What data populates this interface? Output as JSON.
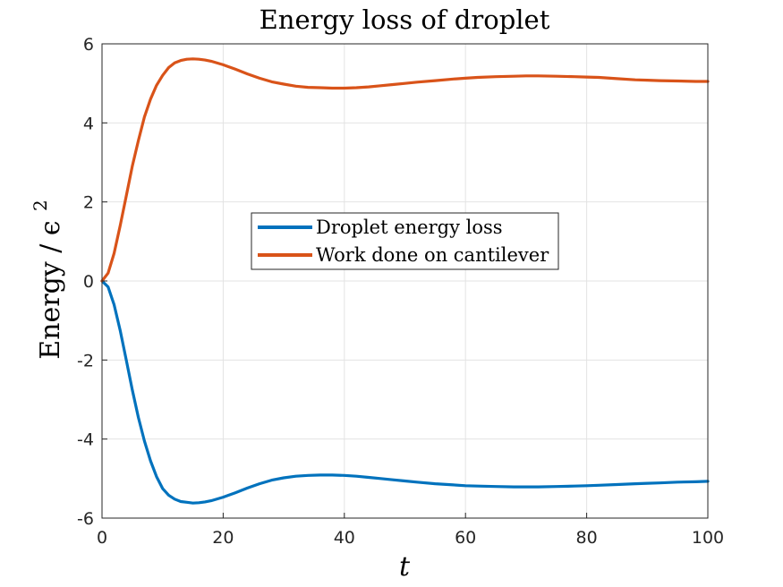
{
  "chart_data": {
    "type": "line",
    "title": "Energy loss of droplet",
    "xlabel": "t",
    "ylabel": "Energy  / ϵ",
    "ylabel_superscript": "2",
    "xlim": [
      0,
      100
    ],
    "ylim": [
      -6,
      6
    ],
    "xticks": [
      "0",
      "20",
      "40",
      "60",
      "80",
      "100"
    ],
    "yticks": [
      "-6",
      "-4",
      "-2",
      "0",
      "2",
      "4",
      "6"
    ],
    "grid": true,
    "legend_position": "center",
    "series": [
      {
        "name": "Droplet energy loss",
        "color": "#0072BD",
        "x": [
          0,
          1,
          2,
          3,
          4,
          5,
          6,
          7,
          8,
          9,
          10,
          11,
          12,
          13,
          14,
          15,
          16,
          17,
          18,
          20,
          22,
          24,
          26,
          28,
          30,
          32,
          34,
          36,
          38,
          40,
          42,
          44,
          46,
          48,
          50,
          52,
          55,
          58,
          60,
          62,
          65,
          68,
          70,
          72,
          75,
          78,
          80,
          82,
          85,
          88,
          90,
          92,
          95,
          98,
          100
        ],
        "values": [
          0,
          -0.15,
          -0.6,
          -1.25,
          -2.0,
          -2.75,
          -3.45,
          -4.05,
          -4.55,
          -4.95,
          -5.25,
          -5.42,
          -5.52,
          -5.58,
          -5.6,
          -5.62,
          -5.61,
          -5.59,
          -5.56,
          -5.47,
          -5.36,
          -5.24,
          -5.13,
          -5.04,
          -4.98,
          -4.94,
          -4.92,
          -4.91,
          -4.91,
          -4.92,
          -4.94,
          -4.97,
          -5.0,
          -5.03,
          -5.06,
          -5.09,
          -5.13,
          -5.16,
          -5.18,
          -5.19,
          -5.2,
          -5.21,
          -5.21,
          -5.21,
          -5.2,
          -5.19,
          -5.18,
          -5.17,
          -5.15,
          -5.13,
          -5.12,
          -5.11,
          -5.09,
          -5.08,
          -5.07
        ]
      },
      {
        "name": "Work done on cantilever",
        "color": "#D95319",
        "x": [
          0,
          1,
          2,
          3,
          4,
          5,
          6,
          7,
          8,
          9,
          10,
          11,
          12,
          13,
          14,
          15,
          16,
          17,
          18,
          20,
          22,
          24,
          26,
          28,
          30,
          32,
          34,
          36,
          38,
          40,
          42,
          44,
          46,
          48,
          50,
          52,
          55,
          58,
          60,
          62,
          65,
          68,
          70,
          72,
          75,
          78,
          80,
          82,
          85,
          88,
          90,
          92,
          95,
          98,
          100
        ],
        "values": [
          0,
          0.2,
          0.7,
          1.4,
          2.15,
          2.9,
          3.55,
          4.15,
          4.6,
          4.95,
          5.2,
          5.4,
          5.52,
          5.58,
          5.61,
          5.62,
          5.61,
          5.59,
          5.56,
          5.47,
          5.36,
          5.24,
          5.13,
          5.04,
          4.98,
          4.93,
          4.9,
          4.89,
          4.88,
          4.88,
          4.89,
          4.91,
          4.94,
          4.97,
          5.0,
          5.03,
          5.07,
          5.11,
          5.13,
          5.15,
          5.17,
          5.18,
          5.19,
          5.19,
          5.18,
          5.17,
          5.16,
          5.15,
          5.12,
          5.09,
          5.08,
          5.07,
          5.06,
          5.05,
          5.05
        ]
      }
    ]
  }
}
